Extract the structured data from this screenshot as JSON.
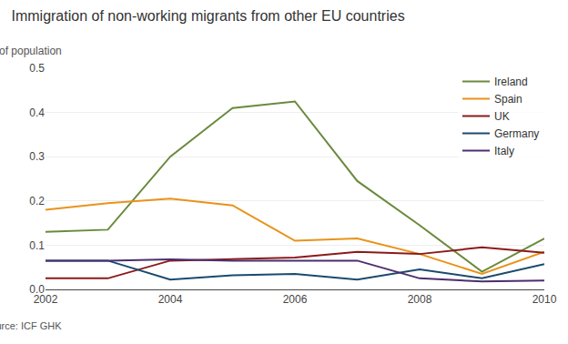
{
  "chart_data": {
    "type": "line",
    "title": "Immigration of non-working migrants from other EU countries",
    "ylabel": "% of population",
    "annotations": [
      "Source: ICF GHK"
    ],
    "x": [
      2002,
      2003,
      2004,
      2005,
      2006,
      2007,
      2008,
      2009,
      2010
    ],
    "series": [
      {
        "name": "Ireland",
        "color": "#6a8a3c",
        "values": [
          0.13,
          0.135,
          0.3,
          0.41,
          0.425,
          0.245,
          0.145,
          0.04,
          0.115
        ]
      },
      {
        "name": "Spain",
        "color": "#e8931a",
        "values": [
          0.18,
          0.195,
          0.205,
          0.19,
          0.11,
          0.115,
          0.08,
          0.035,
          0.085
        ]
      },
      {
        "name": "UK",
        "color": "#8b1a1a",
        "values": [
          0.025,
          0.025,
          0.065,
          0.068,
          0.072,
          0.085,
          0.08,
          0.095,
          0.083
        ]
      },
      {
        "name": "Germany",
        "color": "#1a4a6e",
        "values": [
          0.065,
          0.065,
          0.022,
          0.032,
          0.035,
          0.022,
          0.045,
          0.025,
          0.057
        ]
      },
      {
        "name": "Italy",
        "color": "#4b2e6e",
        "values": [
          0.065,
          0.065,
          0.068,
          0.065,
          0.065,
          0.065,
          0.025,
          0.018,
          0.02
        ]
      }
    ],
    "xlim": [
      2002,
      2010
    ],
    "xticks": [
      2002,
      2004,
      2006,
      2008,
      2010
    ],
    "ylim": [
      0,
      0.5
    ],
    "yticks": [
      {
        "value": 0,
        "label": "0.0"
      },
      0.1,
      0.2,
      0.3,
      0.4,
      0.5
    ],
    "grid": true,
    "legend": "upper right"
  }
}
